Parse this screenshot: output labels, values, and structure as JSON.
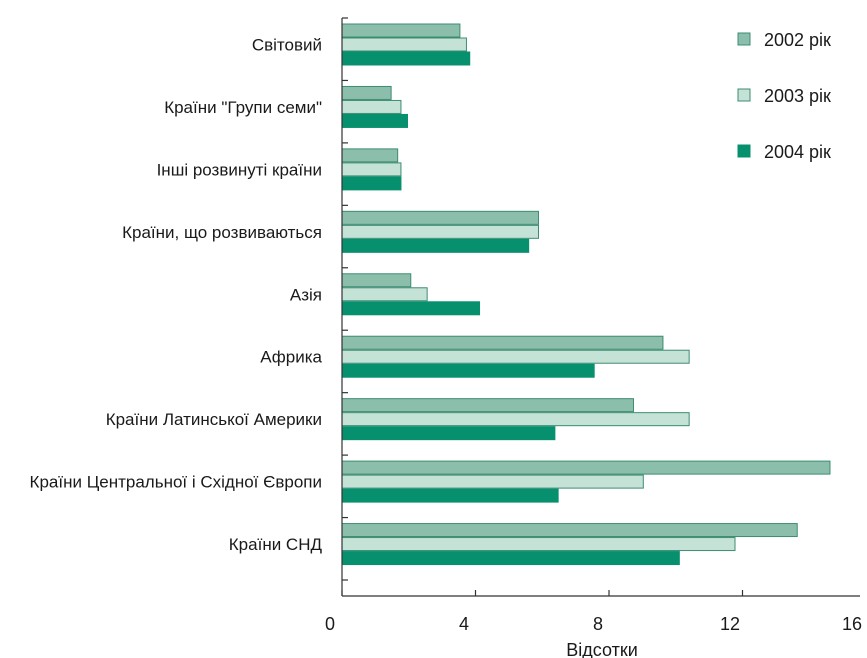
{
  "chart_data": {
    "type": "bar",
    "orientation": "horizontal",
    "categories": [
      "Світовий",
      "Країни \"Групи семи\"",
      "Інші розвинуті країни",
      "Країни, що розвиваються",
      "Азія",
      "Африка",
      "Країни Латинської Америки",
      "Країни Центральної і Східної Європи",
      "Країни СНД"
    ],
    "series": [
      {
        "name": "2002 рік",
        "color": "#8cbfab",
        "values": [
          3.6,
          1.5,
          1.7,
          6.0,
          2.1,
          9.8,
          8.9,
          14.9,
          13.9
        ]
      },
      {
        "name": "2003 рік",
        "color": "#c5e2d7",
        "values": [
          3.8,
          1.8,
          1.8,
          6.0,
          2.6,
          10.6,
          10.6,
          9.2,
          12.0
        ]
      },
      {
        "name": "2004 рік",
        "color": "#07906e",
        "values": [
          3.9,
          2.0,
          1.8,
          5.7,
          4.2,
          7.7,
          6.5,
          6.6,
          10.3
        ]
      }
    ],
    "xlabel": "Відсотки",
    "ylabel": "",
    "title": "",
    "xlim": [
      0,
      16
    ],
    "xticks": [
      "0",
      "4",
      "8",
      "12",
      "16"
    ],
    "grid": false,
    "legend_position": "top-right"
  },
  "colors": {
    "border_2002": "#3d8c72",
    "border_2003": "#3d8c72",
    "border_2004": "#07906e",
    "axis": "#333333"
  }
}
